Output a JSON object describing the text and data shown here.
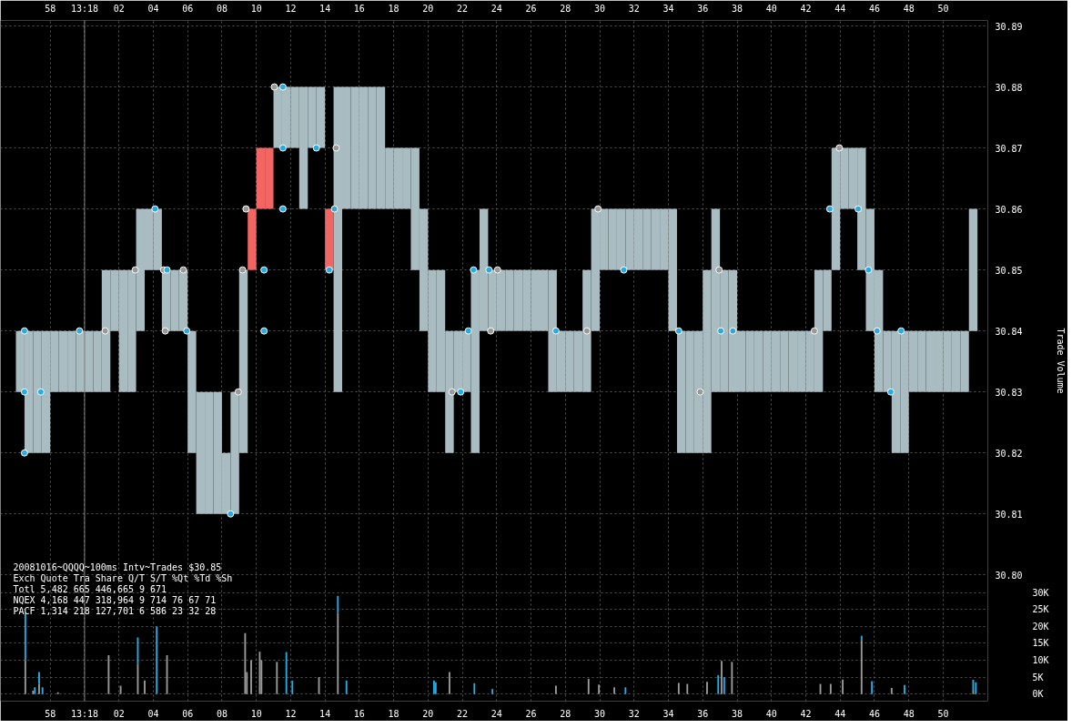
{
  "chart_data": {
    "type": "bar",
    "xlim": [
      "2008-10-16T13:17:55.1",
      "2008-10-16T13:18:52.6"
    ],
    "xticks": [
      {
        "value": "2008-10-16T13:17:58",
        "label": "58"
      },
      {
        "value": "2008-10-16T13:18:00",
        "label": "13:18"
      },
      {
        "value": "2008-10-16T13:18:02",
        "label": "02"
      },
      {
        "value": "2008-10-16T13:18:04",
        "label": "04"
      },
      {
        "value": "2008-10-16T13:18:06",
        "label": "06"
      },
      {
        "value": "2008-10-16T13:18:08",
        "label": "08"
      },
      {
        "value": "2008-10-16T13:18:10",
        "label": "10"
      },
      {
        "value": "2008-10-16T13:18:12",
        "label": "12"
      },
      {
        "value": "2008-10-16T13:18:14",
        "label": "14"
      },
      {
        "value": "2008-10-16T13:18:16",
        "label": "16"
      },
      {
        "value": "2008-10-16T13:18:18",
        "label": "18"
      },
      {
        "value": "2008-10-16T13:18:20",
        "label": "20"
      },
      {
        "value": "2008-10-16T13:18:22",
        "label": "22"
      },
      {
        "value": "2008-10-16T13:18:24",
        "label": "24"
      },
      {
        "value": "2008-10-16T13:18:26",
        "label": "26"
      },
      {
        "value": "2008-10-16T13:18:28",
        "label": "28"
      },
      {
        "value": "2008-10-16T13:18:30",
        "label": "30"
      },
      {
        "value": "2008-10-16T13:18:32",
        "label": "32"
      },
      {
        "value": "2008-10-16T13:18:34",
        "label": "34"
      },
      {
        "value": "2008-10-16T13:18:36",
        "label": "36"
      },
      {
        "value": "2008-10-16T13:18:38",
        "label": "38"
      },
      {
        "value": "2008-10-16T13:18:40",
        "label": "40"
      },
      {
        "value": "2008-10-16T13:18:42",
        "label": "42"
      },
      {
        "value": "2008-10-16T13:18:44",
        "label": "44"
      },
      {
        "value": "2008-10-16T13:18:46",
        "label": "46"
      },
      {
        "value": "2008-10-16T13:18:48",
        "label": "48"
      },
      {
        "value": "2008-10-16T13:18:50",
        "label": "50"
      }
    ],
    "x2lim": [
      "2008-10-16T13:17:55.1",
      "2008-10-16T13:18:52.6"
    ],
    "x2ticks": [
      {
        "value": "2008-10-16T13:17:58",
        "label": "58"
      },
      {
        "value": "2008-10-16T13:18:00",
        "label": "13:18"
      },
      {
        "value": "2008-10-16T13:18:02",
        "label": "02"
      },
      {
        "value": "2008-10-16T13:18:04",
        "label": "04"
      },
      {
        "value": "2008-10-16T13:18:06",
        "label": "06"
      },
      {
        "value": "2008-10-16T13:18:08",
        "label": "08"
      },
      {
        "value": "2008-10-16T13:18:10",
        "label": "10"
      },
      {
        "value": "2008-10-16T13:18:12",
        "label": "12"
      },
      {
        "value": "2008-10-16T13:18:14",
        "label": "14"
      },
      {
        "value": "2008-10-16T13:18:16",
        "label": "16"
      },
      {
        "value": "2008-10-16T13:18:18",
        "label": "18"
      },
      {
        "value": "2008-10-16T13:18:20",
        "label": "20"
      },
      {
        "value": "2008-10-16T13:18:22",
        "label": "22"
      },
      {
        "value": "2008-10-16T13:18:24",
        "label": "24"
      },
      {
        "value": "2008-10-16T13:18:26",
        "label": "26"
      },
      {
        "value": "2008-10-16T13:18:28",
        "label": "28"
      },
      {
        "value": "2008-10-16T13:18:30",
        "label": "30"
      },
      {
        "value": "2008-10-16T13:18:32",
        "label": "32"
      },
      {
        "value": "2008-10-16T13:18:34",
        "label": "34"
      },
      {
        "value": "2008-10-16T13:18:36",
        "label": "36"
      },
      {
        "value": "2008-10-16T13:18:38",
        "label": "38"
      },
      {
        "value": "2008-10-16T13:18:40",
        "label": "40"
      },
      {
        "value": "2008-10-16T13:18:42",
        "label": "42"
      },
      {
        "value": "2008-10-16T13:18:44",
        "label": "44"
      },
      {
        "value": "2008-10-16T13:18:46",
        "label": "46"
      },
      {
        "value": "2008-10-16T13:18:48",
        "label": "48"
      },
      {
        "value": "2008-10-16T13:18:50",
        "label": "50"
      }
    ],
    "ylim": [
      30.7793,
      30.8909
    ],
    "yticks": [
      {
        "value": 30.8,
        "label": "30.80"
      },
      30.81,
      30.82,
      30.83,
      30.84,
      30.85,
      30.86,
      30.87,
      30.88,
      30.89
    ],
    "y2lim": [
      -2090,
      198800
    ],
    "y2ticks": [
      {
        "value": 0,
        "label": "0K"
      },
      {
        "value": 5000,
        "label": "5K"
      },
      {
        "value": 10000,
        "label": "10K"
      },
      {
        "value": 15000,
        "label": "15K"
      },
      {
        "value": 20000,
        "label": "20K"
      },
      {
        "value": 25000,
        "label": "25K"
      },
      {
        "value": 30000,
        "label": "30K"
      }
    ],
    "y2label": "Trade Volume",
    "grid": true,
    "stacked": true,
    "marker": "circle",
    "ref_lines": [
      {
        "axis": "x",
        "value": "2008-10-16T13:18:00",
        "color": "#808080"
      }
    ],
    "annotations": [
      "20081016~QQQQ~100ms Intv~Trades $30.85",
      "Exch Quote Tra   Share  Q/T   S/T  %Qt %Td %Sh",
      "Totl 5,482 665 446,665    9   671",
      "NQEX 4,168 447 318,964    9   714   76  67  71",
      "PACF 1,314 218 127,701    6   586   23  32  28"
    ],
    "x": [
      "2008-10-16T13:17:56.55",
      "2008-10-16T13:17:57",
      "2008-10-16T13:17:57.1",
      "2008-10-16T13:17:57.35",
      "2008-10-16T13:17:57.55",
      "2008-10-16T13:17:58.45",
      "2008-10-16T13:18:01.4",
      "2008-10-16T13:18:02.1",
      "2008-10-16T13:18:03.1",
      "2008-10-16T13:18:03.5",
      "2008-10-16T13:18:04.2",
      "2008-10-16T13:18:04.8",
      "2008-10-16T13:18:09.35",
      "2008-10-16T13:18:09.45",
      "2008-10-16T13:18:09.7",
      "2008-10-16T13:18:10.2",
      "2008-10-16T13:18:10.3",
      "2008-10-16T13:18:11.2",
      "2008-10-16T13:18:11.75",
      "2008-10-16T13:18:12.1",
      "2008-10-16T13:18:13.65",
      "2008-10-16T13:18:14.75",
      "2008-10-16T13:18:15.25",
      "2008-10-16T13:18:20.35",
      "2008-10-16T13:18:20.45",
      "2008-10-16T13:18:21.25",
      "2008-10-16T13:18:22.7",
      "2008-10-16T13:18:23.75",
      "2008-10-16T13:18:27.45",
      "2008-10-16T13:18:29.35",
      "2008-10-16T13:18:29.95",
      "2008-10-16T13:18:30.85",
      "2008-10-16T13:18:31.5",
      "2008-10-16T13:18:34.6",
      "2008-10-16T13:18:35.1",
      "2008-10-16T13:18:36.25",
      "2008-10-16T13:18:36.9",
      "2008-10-16T13:18:37.1",
      "2008-10-16T13:18:37.25",
      "2008-10-16T13:18:37.7",
      "2008-10-16T13:18:42.85",
      "2008-10-16T13:18:43.45",
      "2008-10-16T13:18:44.15",
      "2008-10-16T13:18:45.25",
      "2008-10-16T13:18:45.85",
      "2008-10-16T13:18:47",
      "2008-10-16T13:18:47.75",
      "2008-10-16T13:18:51.75",
      "2008-10-16T13:18:51.9"
    ],
    "series": [
      {
        "x": [
          "2008-10-16T13:17:56.25",
          "2008-10-16T13:17:56.75",
          "2008-10-16T13:17:57.25",
          "2008-10-16T13:17:57.75",
          "2008-10-16T13:17:58.25",
          "2008-10-16T13:17:58.75",
          "2008-10-16T13:17:59.25",
          "2008-10-16T13:17:59.75",
          "2008-10-16T13:18:00.25",
          "2008-10-16T13:18:00.75",
          "2008-10-16T13:18:01.25",
          "2008-10-16T13:18:01.75",
          "2008-10-16T13:18:02.25",
          "2008-10-16T13:18:02.75",
          "2008-10-16T13:18:03.25",
          "2008-10-16T13:18:03.75",
          "2008-10-16T13:18:04.25",
          "2008-10-16T13:18:04.75",
          "2008-10-16T13:18:05.25",
          "2008-10-16T13:18:05.75",
          "2008-10-16T13:18:06.25",
          "2008-10-16T13:18:06.75",
          "2008-10-16T13:18:07.25",
          "2008-10-16T13:18:07.75",
          "2008-10-16T13:18:08.25",
          "2008-10-16T13:18:08.75",
          "2008-10-16T13:18:09.25",
          "2008-10-16T13:18:09.75",
          "2008-10-16T13:18:10.25",
          "2008-10-16T13:18:10.75",
          "2008-10-16T13:18:11.25",
          "2008-10-16T13:18:11.75",
          "2008-10-16T13:18:12.25",
          "2008-10-16T13:18:12.75",
          "2008-10-16T13:18:13.25",
          "2008-10-16T13:18:13.75",
          "2008-10-16T13:18:14.25",
          "2008-10-16T13:18:14.75",
          "2008-10-16T13:18:15.25",
          "2008-10-16T13:18:15.75",
          "2008-10-16T13:18:16.25",
          "2008-10-16T13:18:16.75",
          "2008-10-16T13:18:17.25",
          "2008-10-16T13:18:17.75",
          "2008-10-16T13:18:18.25",
          "2008-10-16T13:18:18.75",
          "2008-10-16T13:18:19.25",
          "2008-10-16T13:18:19.75",
          "2008-10-16T13:18:20.25",
          "2008-10-16T13:18:20.75",
          "2008-10-16T13:18:21.25",
          "2008-10-16T13:18:21.75",
          "2008-10-16T13:18:22.25",
          "2008-10-16T13:18:22.75",
          "2008-10-16T13:18:23.25",
          "2008-10-16T13:18:23.75",
          "2008-10-16T13:18:24.25",
          "2008-10-16T13:18:24.75",
          "2008-10-16T13:18:25.25",
          "2008-10-16T13:18:25.75",
          "2008-10-16T13:18:26.25",
          "2008-10-16T13:18:26.75",
          "2008-10-16T13:18:27.25",
          "2008-10-16T13:18:27.75",
          "2008-10-16T13:18:28.25",
          "2008-10-16T13:18:28.75",
          "2008-10-16T13:18:29.25",
          "2008-10-16T13:18:29.75",
          "2008-10-16T13:18:30.25",
          "2008-10-16T13:18:30.75",
          "2008-10-16T13:18:31.25",
          "2008-10-16T13:18:31.75",
          "2008-10-16T13:18:32.25",
          "2008-10-16T13:18:32.75",
          "2008-10-16T13:18:33.25",
          "2008-10-16T13:18:33.75",
          "2008-10-16T13:18:34.25",
          "2008-10-16T13:18:34.75",
          "2008-10-16T13:18:35.25",
          "2008-10-16T13:18:35.75",
          "2008-10-16T13:18:36.25",
          "2008-10-16T13:18:36.75",
          "2008-10-16T13:18:37.25",
          "2008-10-16T13:18:37.75",
          "2008-10-16T13:18:38.25",
          "2008-10-16T13:18:38.75",
          "2008-10-16T13:18:39.25",
          "2008-10-16T13:18:39.75",
          "2008-10-16T13:18:40.25",
          "2008-10-16T13:18:40.75",
          "2008-10-16T13:18:41.25",
          "2008-10-16T13:18:41.75",
          "2008-10-16T13:18:42.25",
          "2008-10-16T13:18:42.75",
          "2008-10-16T13:18:43.25",
          "2008-10-16T13:18:43.75",
          "2008-10-16T13:18:44.25",
          "2008-10-16T13:18:44.75",
          "2008-10-16T13:18:45.25",
          "2008-10-16T13:18:45.75",
          "2008-10-16T13:18:46.25",
          "2008-10-16T13:18:46.75",
          "2008-10-16T13:18:47.25",
          "2008-10-16T13:18:47.75",
          "2008-10-16T13:18:48.25",
          "2008-10-16T13:18:48.75",
          "2008-10-16T13:18:49.25",
          "2008-10-16T13:18:49.75",
          "2008-10-16T13:18:50.25",
          "2008-10-16T13:18:50.75",
          "2008-10-16T13:18:51.25",
          "2008-10-16T13:18:51.75"
        ],
        "base": [
          30.83,
          30.82,
          30.82,
          30.82,
          30.83,
          30.83,
          30.83,
          30.83,
          30.83,
          30.83,
          30.83,
          30.84,
          30.83,
          30.83,
          30.84,
          30.85,
          30.85,
          30.84,
          30.84,
          30.84,
          30.82,
          30.81,
          30.81,
          30.81,
          30.81,
          30.81,
          30.82,
          30.85,
          30.86,
          30.86,
          30.87,
          30.87,
          30.87,
          30.86,
          30.87,
          30.87,
          30.85,
          30.83,
          30.86,
          30.86,
          30.86,
          30.86,
          30.86,
          30.86,
          30.86,
          30.86,
          30.85,
          30.84,
          30.83,
          30.83,
          30.82,
          30.83,
          30.83,
          30.82,
          30.84,
          30.84,
          30.84,
          30.84,
          30.84,
          30.84,
          30.84,
          30.84,
          30.83,
          30.83,
          30.83,
          30.83,
          30.83,
          30.84,
          30.85,
          30.85,
          30.85,
          30.85,
          30.85,
          30.85,
          30.85,
          30.85,
          30.84,
          30.82,
          30.82,
          30.82,
          30.82,
          30.83,
          30.83,
          30.83,
          30.83,
          30.83,
          30.83,
          30.83,
          30.83,
          30.83,
          30.83,
          30.83,
          30.83,
          30.83,
          30.84,
          30.85,
          30.86,
          30.86,
          30.85,
          30.84,
          30.83,
          30.83,
          30.82,
          30.82,
          30.83,
          30.83,
          30.83,
          30.83,
          30.83,
          30.83,
          30.83,
          30.84
        ],
        "values": [
          0.01,
          0.02,
          0.02,
          0.02,
          0.01,
          0.01,
          0.01,
          0.01,
          0.01,
          0.01,
          0.02,
          0.01,
          0.02,
          0.02,
          0.02,
          0.01,
          0.01,
          0.01,
          0.01,
          0.01,
          0.02,
          0.02,
          0.02,
          0.02,
          0.01,
          0.02,
          0.03,
          0.01,
          0.01,
          0.01,
          0.01,
          0.01,
          0.01,
          0.02,
          0.01,
          0.01,
          0.01,
          0.05,
          0.02,
          0.02,
          0.02,
          0.02,
          0.02,
          0.01,
          0.01,
          0.01,
          0.02,
          0.02,
          0.02,
          0.02,
          0.02,
          0.01,
          0.01,
          0.03,
          0.02,
          0.01,
          0.01,
          0.01,
          0.01,
          0.01,
          0.01,
          0.01,
          0.02,
          0.01,
          0.01,
          0.01,
          0.02,
          0.02,
          0.01,
          0.01,
          0.01,
          0.01,
          0.01,
          0.01,
          0.01,
          0.01,
          0.02,
          0.02,
          0.02,
          0.02,
          0.03,
          0.03,
          0.02,
          0.02,
          0.01,
          0.01,
          0.01,
          0.01,
          0.01,
          0.01,
          0.01,
          0.01,
          0.01,
          0.02,
          0.01,
          0.02,
          0.01,
          0.01,
          0.02,
          0.02,
          0.02,
          0.01,
          0.02,
          0.02,
          0.01,
          0.01,
          0.01,
          0.01,
          0.01,
          0.01,
          0.01,
          0.02
        ],
        "colors": [
          "#a9bcc1",
          "#a9bcc1",
          "#a9bcc1",
          "#a9bcc1",
          "#a9bcc1",
          "#a9bcc1",
          "#a9bcc1",
          "#a9bcc1",
          "#a9bcc1",
          "#a9bcc1",
          "#a9bcc1",
          "#a9bcc1",
          "#a9bcc1",
          "#a9bcc1",
          "#a9bcc1",
          "#a9bcc1",
          "#a9bcc1",
          "#a9bcc1",
          "#a9bcc1",
          "#a9bcc1",
          "#a9bcc1",
          "#a9bcc1",
          "#a9bcc1",
          "#a9bcc1",
          "#a9bcc1",
          "#a9bcc1",
          "#a9bcc1",
          "#f26563",
          "#f26563",
          "#f26563",
          "#a9bcc1",
          "#a9bcc1",
          "#a9bcc1",
          "#a9bcc1",
          "#a9bcc1",
          "#a9bcc1",
          "#f26563",
          "#a9bcc1",
          "#a9bcc1",
          "#a9bcc1",
          "#a9bcc1",
          "#a9bcc1",
          "#a9bcc1",
          "#a9bcc1",
          "#a9bcc1",
          "#a9bcc1",
          "#a9bcc1",
          "#a9bcc1",
          "#a9bcc1",
          "#a9bcc1",
          "#a9bcc1",
          "#a9bcc1",
          "#a9bcc1",
          "#a9bcc1",
          "#a9bcc1",
          "#a9bcc1",
          "#a9bcc1",
          "#a9bcc1",
          "#a9bcc1",
          "#a9bcc1",
          "#a9bcc1",
          "#a9bcc1",
          "#a9bcc1",
          "#a9bcc1",
          "#a9bcc1",
          "#a9bcc1",
          "#a9bcc1",
          "#a9bcc1",
          "#a9bcc1",
          "#a9bcc1",
          "#a9bcc1",
          "#a9bcc1",
          "#a9bcc1",
          "#a9bcc1",
          "#a9bcc1",
          "#a9bcc1",
          "#a9bcc1",
          "#a9bcc1",
          "#a9bcc1",
          "#a9bcc1",
          "#a9bcc1",
          "#a9bcc1",
          "#a9bcc1",
          "#a9bcc1",
          "#a9bcc1",
          "#a9bcc1",
          "#a9bcc1",
          "#a9bcc1",
          "#a9bcc1",
          "#a9bcc1",
          "#a9bcc1",
          "#a9bcc1",
          "#a9bcc1",
          "#a9bcc1",
          "#a9bcc1",
          "#a9bcc1",
          "#a9bcc1",
          "#a9bcc1",
          "#a9bcc1",
          "#a9bcc1",
          "#a9bcc1",
          "#a9bcc1",
          "#a9bcc1",
          "#a9bcc1",
          "#a9bcc1",
          "#a9bcc1",
          "#a9bcc1",
          "#a9bcc1",
          "#a9bcc1",
          "#a9bcc1",
          "#a9bcc1",
          "#a9bcc1"
        ]
      },
      {
        "type": "scatter",
        "color": "#999999",
        "x": [
          "2008-10-16T13:18:01.2",
          "2008-10-16T13:18:02.95",
          "2008-10-16T13:18:04.6",
          "2008-10-16T13:18:04.7",
          "2008-10-16T13:18:05.75",
          "2008-10-16T13:18:08.95",
          "2008-10-16T13:18:09.2",
          "2008-10-16T13:18:09.4",
          "2008-10-16T13:18:11.05",
          "2008-10-16T13:18:14.65",
          "2008-10-16T13:18:21.4",
          "2008-10-16T13:18:23.65",
          "2008-10-16T13:18:24.05",
          "2008-10-16T13:18:29.25",
          "2008-10-16T13:18:29.9",
          "2008-10-16T13:18:35.85",
          "2008-10-16T13:18:36.95",
          "2008-10-16T13:18:42.5",
          "2008-10-16T13:18:43.95"
        ],
        "values": [
          30.84,
          30.85,
          30.85,
          30.84,
          30.85,
          30.83,
          30.85,
          30.86,
          30.88,
          30.87,
          30.83,
          30.84,
          30.85,
          30.84,
          30.86,
          30.83,
          30.85,
          30.84,
          30.87
        ]
      },
      {
        "type": "scatter",
        "color": "#29abe2",
        "x": [
          "2008-10-16T13:17:56.5",
          "2008-10-16T13:17:56.5",
          "2008-10-16T13:17:56.5",
          "2008-10-16T13:17:57.45",
          "2008-10-16T13:17:59.7",
          "2008-10-16T13:18:04.1",
          "2008-10-16T13:18:04.8",
          "2008-10-16T13:18:05.95",
          "2008-10-16T13:18:08.5",
          "2008-10-16T13:18:10.45",
          "2008-10-16T13:18:10.45",
          "2008-10-16T13:18:11.55",
          "2008-10-16T13:18:11.55",
          "2008-10-16T13:18:11.55",
          "2008-10-16T13:18:13.5",
          "2008-10-16T13:18:14.25",
          "2008-10-16T13:18:14.55",
          "2008-10-16T13:18:21.9",
          "2008-10-16T13:18:22.35",
          "2008-10-16T13:18:22.65",
          "2008-10-16T13:18:23.55",
          "2008-10-16T13:18:27.45",
          "2008-10-16T13:18:31.4",
          "2008-10-16T13:18:34.6",
          "2008-10-16T13:18:37.05",
          "2008-10-16T13:18:37.75",
          "2008-10-16T13:18:43.4",
          "2008-10-16T13:18:45.05",
          "2008-10-16T13:18:45.65",
          "2008-10-16T13:18:46.15",
          "2008-10-16T13:18:46.95",
          "2008-10-16T13:18:47.55"
        ],
        "values": [
          30.84,
          30.83,
          30.82,
          30.83,
          30.84,
          30.86,
          30.85,
          30.84,
          30.81,
          30.85,
          30.84,
          30.86,
          30.87,
          30.88,
          30.87,
          30.85,
          30.86,
          30.83,
          30.84,
          30.85,
          30.85,
          30.84,
          30.85,
          30.84,
          30.84,
          30.84,
          30.86,
          30.86,
          30.85,
          30.84,
          30.83,
          30.84
        ]
      },
      {
        "axis": "y2",
        "color": "#999999",
        "values": [
          10000,
          1000,
          null,
          3000,
          null,
          500,
          11500,
          2500,
          9000,
          4000,
          null,
          11500,
          18000,
          6500,
          10000,
          12500,
          10000,
          9500,
          null,
          null,
          5000,
          24000,
          null,
          null,
          null,
          6500,
          null,
          null,
          2500,
          4500,
          2800,
          2000,
          null,
          3300,
          3000,
          3600,
          null,
          9800,
          null,
          9500,
          3000,
          3000,
          4300,
          16000,
          null,
          1800,
          null,
          1000,
          null
        ]
      },
      {
        "axis": "y2",
        "color": "#29abe2",
        "values": [
          14000,
          null,
          2000,
          3500,
          2000,
          null,
          null,
          null,
          7700,
          null,
          19900,
          null,
          null,
          null,
          null,
          null,
          null,
          null,
          12400,
          4000,
          null,
          5000,
          4000,
          4000,
          3500,
          null,
          3200,
          1500,
          null,
          null,
          null,
          null,
          2000,
          null,
          null,
          null,
          5600,
          null,
          5000,
          null,
          null,
          null,
          null,
          1200,
          3800,
          null,
          2700,
          3200,
          3500
        ]
      }
    ]
  }
}
